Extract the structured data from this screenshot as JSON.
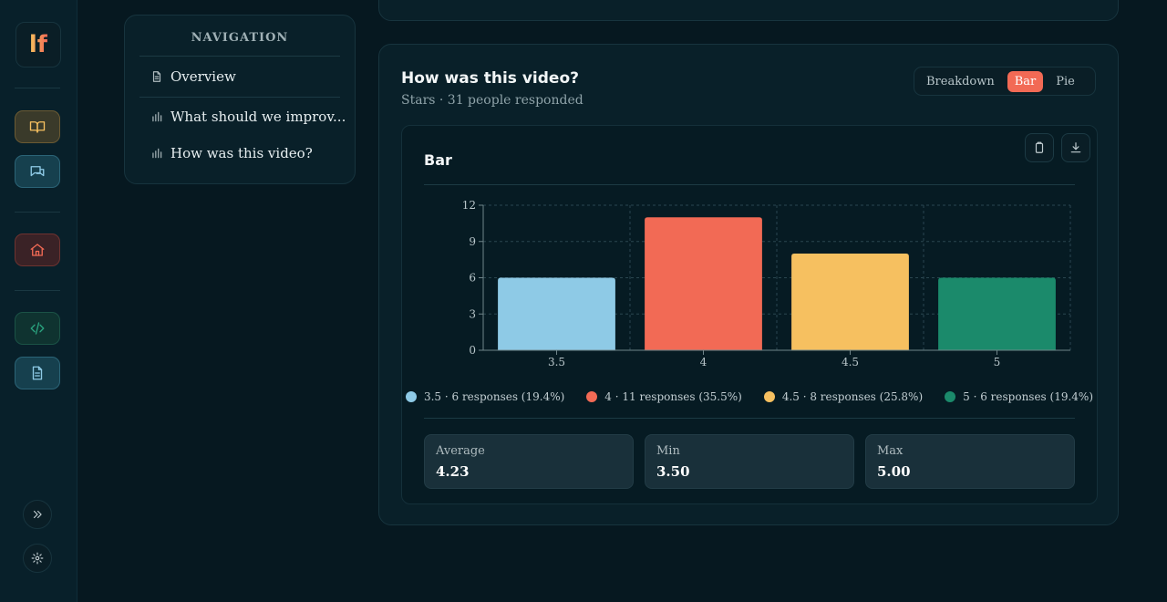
{
  "app": {
    "logo_text": "lf"
  },
  "rail": {
    "icons": [
      "book-icon",
      "chat-icon",
      "home-icon",
      "code-icon",
      "document-icon",
      "expand-icon",
      "gear-icon"
    ]
  },
  "nav": {
    "title": "NAVIGATION",
    "items": [
      {
        "label": "Overview",
        "icon": "document-icon"
      },
      {
        "label": "What should we improv...",
        "icon": "bar-chart-icon"
      },
      {
        "label": "How was this video?",
        "icon": "bar-chart-icon"
      }
    ]
  },
  "question": {
    "title": "How was this video?",
    "subtitle": "Stars · 31 people responded",
    "view_options": [
      "Breakdown",
      "Bar",
      "Pie"
    ],
    "active_view": "Bar"
  },
  "panel": {
    "title": "Bar",
    "copy_icon": "clipboard-icon",
    "download_icon": "download-icon"
  },
  "chart_data": {
    "type": "bar",
    "categories": [
      "3.5",
      "4",
      "4.5",
      "5"
    ],
    "values": [
      6,
      11,
      8,
      6
    ],
    "colors": [
      "#8ecae6",
      "#f26a55",
      "#f6c060",
      "#1b8a6b"
    ],
    "yticks": [
      "0",
      "3",
      "6",
      "9",
      "12"
    ],
    "ylim": [
      0,
      12
    ],
    "grid": true,
    "legend_placement": "bottom"
  },
  "legend": [
    {
      "label": "3.5 · 6 responses (19.4%)",
      "color": "#8ecae6"
    },
    {
      "label": "4 · 11 responses (35.5%)",
      "color": "#f26a55"
    },
    {
      "label": "4.5 · 8 responses (25.8%)",
      "color": "#f6c060"
    },
    {
      "label": "5 · 6 responses (19.4%)",
      "color": "#1b8a6b"
    }
  ],
  "stats": [
    {
      "label": "Average",
      "value": "4.23"
    },
    {
      "label": "Min",
      "value": "3.50"
    },
    {
      "label": "Max",
      "value": "5.00"
    }
  ]
}
